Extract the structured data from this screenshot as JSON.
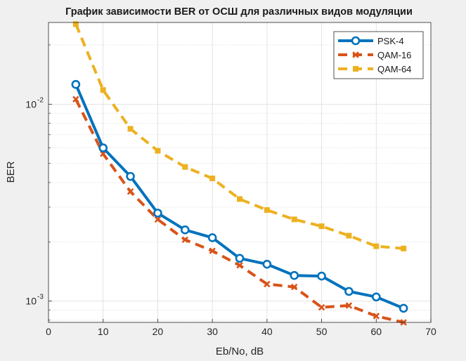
{
  "chart_data": {
    "type": "line",
    "title": "График зависимости BER от ОСШ для различных видов модуляции",
    "xlabel": "Eb/No, dB",
    "ylabel": "BER",
    "xlim": [
      0,
      70
    ],
    "ylim": [
      0.00078,
      0.026
    ],
    "yscale": "log",
    "xticks": [
      "0",
      "10",
      "20",
      "30",
      "40",
      "50",
      "60",
      "70"
    ],
    "yticks": [
      {
        "base": "10",
        "exp": "-2",
        "value": 0.01
      },
      {
        "base": "10",
        "exp": "-3",
        "value": 0.001
      }
    ],
    "grid": true,
    "legend_position": "top-right",
    "x": [
      5,
      10,
      15,
      20,
      25,
      30,
      35,
      40,
      45,
      50,
      55,
      60,
      65
    ],
    "series": [
      {
        "name": "PSK-4",
        "color": "#0072BD",
        "style": "solid",
        "marker": "circle",
        "values": [
          0.0126,
          0.006,
          0.0043,
          0.0028,
          0.0023,
          0.0021,
          0.00165,
          0.00154,
          0.00135,
          0.00134,
          0.00112,
          0.00105,
          0.00092
        ]
      },
      {
        "name": "QAM-16",
        "color": "#D95319",
        "style": "dashed",
        "marker": "x",
        "values": [
          0.0106,
          0.0056,
          0.0036,
          0.0026,
          0.00205,
          0.0018,
          0.00152,
          0.00122,
          0.00118,
          0.00093,
          0.00095,
          0.00084,
          0.00078
        ]
      },
      {
        "name": "QAM-64",
        "color": "#EDB120",
        "style": "dashed",
        "marker": "square",
        "values": [
          0.0255,
          0.0118,
          0.0075,
          0.0058,
          0.0048,
          0.0042,
          0.0033,
          0.0029,
          0.0026,
          0.0024,
          0.00215,
          0.0019,
          0.00185
        ]
      }
    ]
  }
}
